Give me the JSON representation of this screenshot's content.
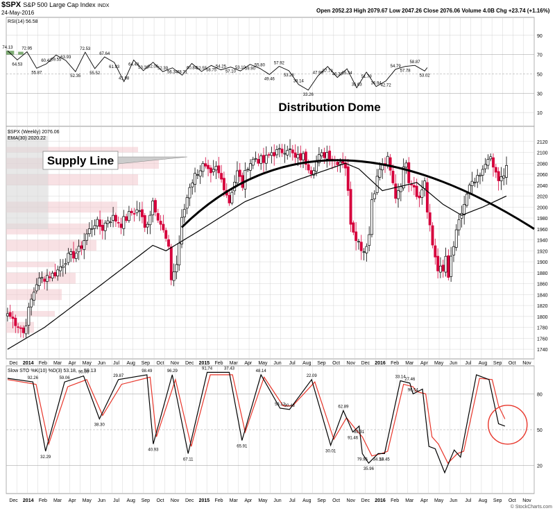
{
  "header": {
    "symbol": "$SPX",
    "name": "S&P 500 Large Cap Index",
    "exchange": "INDX",
    "date": "24-May-2016",
    "ohlc_text": "Open 2052.23  High 2079.67  Low 2047.26  Close 2076.06  Volume 4.0B  Chg +23.74 (+1.16%)",
    "watermark": "© StockCharts.com"
  },
  "panels": {
    "rsi_label": "RSI(14) 56.58",
    "price_label": "$SPX (Weekly) 2076.06",
    "ema_label": "EMA(30) 2020.22",
    "sto_label_k": "Slow STO %K(10) %D(3) 53.18,",
    "sto_label_d": "59.13"
  },
  "annotations": {
    "dome": "Distribution Dome",
    "supply": "Supply Line"
  },
  "colors": {
    "up": "#000000",
    "down": "#d6003c",
    "grid": "#cccccc",
    "sto_k": "#000000",
    "sto_d": "#e8352a",
    "circle": "#e8352a"
  },
  "chart_data": [
    {
      "type": "line",
      "title": "RSI(14) 56.58",
      "ylim": [
        0,
        100
      ],
      "ticks": [
        10,
        30,
        50,
        70,
        90
      ],
      "x_months": [
        "Dec",
        "2014",
        "Feb",
        "Mar",
        "Apr",
        "May",
        "Jun",
        "Jul",
        "Aug",
        "Sep",
        "Oct",
        "Nov",
        "Dec",
        "2015",
        "Feb",
        "Mar",
        "Apr",
        "May",
        "Jun",
        "Jul",
        "Aug",
        "Sep",
        "Oct",
        "Nov",
        "Dec",
        "2016",
        "Feb",
        "Mar",
        "Apr",
        "May",
        "Jun",
        "Jul",
        "Aug",
        "Sep",
        "Oct",
        "Nov"
      ],
      "peaks": [
        74.13,
        64.53,
        72.95,
        55.87,
        60.42,
        69.55,
        63.93,
        52.35,
        72.53,
        55.52,
        67.64,
        61.93,
        41.98,
        64.48,
        53.39,
        62.06,
        52.39,
        56.34,
        48.71,
        60.84,
        52.55,
        58.75,
        54.25,
        57.1,
        53.1,
        59.9,
        55.8,
        49.46,
        57.92,
        53.28,
        39.14,
        33.26,
        47.99,
        57.73,
        46.3,
        55.34,
        35.63,
        51.79,
        36.94,
        42.72,
        54.79,
        57.78,
        58.87,
        53.02
      ],
      "last": 56.58
    },
    {
      "type": "candlestick",
      "title": "$SPX (Weekly) 2076.06",
      "ylim": [
        1730,
        2140
      ],
      "ticks": [
        1740,
        1760,
        1780,
        1800,
        1820,
        1840,
        1860,
        1880,
        1900,
        1920,
        1940,
        1960,
        1980,
        2000,
        2020,
        2040,
        2060,
        2080,
        2100,
        2120
      ],
      "ema_label": "EMA(30) 2020.22",
      "close_start": 1805,
      "close_end": 2076.06,
      "anchors": [
        [
          0,
          1805
        ],
        [
          3,
          1790
        ],
        [
          5,
          1780
        ],
        [
          6,
          1770
        ],
        [
          9,
          1830
        ],
        [
          11,
          1862
        ],
        [
          15,
          1875
        ],
        [
          17,
          1876
        ],
        [
          19,
          1884
        ],
        [
          22,
          1905
        ],
        [
          24,
          1910
        ],
        [
          27,
          1920
        ],
        [
          30,
          1950
        ],
        [
          33,
          1972
        ],
        [
          36,
          1962
        ],
        [
          38,
          1978
        ],
        [
          40,
          1980
        ],
        [
          43,
          1970
        ],
        [
          47,
          1990
        ],
        [
          50,
          1995
        ],
        [
          52,
          1960
        ],
        [
          54,
          1990
        ],
        [
          55,
          2012
        ],
        [
          58,
          1970
        ],
        [
          60,
          1940
        ],
        [
          61,
          1920
        ],
        [
          62,
          1870
        ],
        [
          64,
          1895
        ],
        [
          66,
          1975
        ],
        [
          69,
          2040
        ],
        [
          72,
          2066
        ],
        [
          74,
          2075
        ],
        [
          77,
          2055
        ],
        [
          79,
          2070
        ],
        [
          82,
          2040
        ],
        [
          84,
          2010
        ],
        [
          85,
          2032
        ],
        [
          87,
          2063
        ],
        [
          89,
          2040
        ],
        [
          91,
          2078
        ],
        [
          94,
          2090
        ],
        [
          97,
          2082
        ],
        [
          100,
          2100
        ],
        [
          103,
          2100
        ],
        [
          106,
          2110
        ],
        [
          109,
          2088
        ],
        [
          112,
          2092
        ],
        [
          115,
          2068
        ],
        [
          118,
          2090
        ],
        [
          121,
          2100
        ],
        [
          124,
          2085
        ],
        [
          127,
          2085
        ],
        [
          128,
          2075
        ],
        [
          130,
          1975
        ],
        [
          131,
          1960
        ],
        [
          133,
          1935
        ],
        [
          135,
          1920
        ],
        [
          137,
          1950
        ],
        [
          138,
          2015
        ],
        [
          141,
          2070
        ],
        [
          144,
          2085
        ],
        [
          147,
          2020
        ],
        [
          149,
          2045
        ],
        [
          151,
          2088
        ],
        [
          152,
          2052
        ],
        [
          154,
          2040
        ],
        [
          156,
          2015
        ],
        [
          158,
          2050
        ],
        [
          159,
          1990
        ],
        [
          161,
          1930
        ],
        [
          163,
          1890
        ],
        [
          165,
          1880
        ],
        [
          166,
          1910
        ],
        [
          167,
          1864
        ],
        [
          168,
          1907
        ],
        [
          170,
          1950
        ],
        [
          172,
          1990
        ],
        [
          175,
          2035
        ],
        [
          178,
          2049
        ],
        [
          180,
          2063
        ],
        [
          182,
          2095
        ],
        [
          184,
          2072
        ],
        [
          186,
          2050
        ],
        [
          188,
          2052
        ],
        [
          189,
          2076.06
        ]
      ],
      "ema_anchors": [
        [
          0,
          1740
        ],
        [
          14,
          1780
        ],
        [
          36,
          1860
        ],
        [
          55,
          1930
        ],
        [
          60,
          1920
        ],
        [
          72,
          1955
        ],
        [
          90,
          2010
        ],
        [
          110,
          2050
        ],
        [
          128,
          2080
        ],
        [
          133,
          2070
        ],
        [
          142,
          2030
        ],
        [
          155,
          2045
        ],
        [
          165,
          2005
        ],
        [
          172,
          1985
        ],
        [
          180,
          2000
        ],
        [
          189,
          2020.22
        ]
      ]
    },
    {
      "type": "line",
      "title": "Slow STO %K(10) %D(3) 53.18, 59.13",
      "ylim": [
        0,
        100
      ],
      "ticks": [
        20,
        50,
        80
      ],
      "series": [
        {
          "name": "%K(10)",
          "last": 53.18
        },
        {
          "name": "%D(3)",
          "last": 59.13
        }
      ],
      "labels": [
        92.26,
        32.29,
        59.06,
        96.0,
        38.3,
        29.87,
        98.49,
        40.93,
        96.29,
        67.11,
        91.74,
        37.43,
        65.91,
        48.14,
        53.12,
        30.43,
        22.09,
        30.01,
        62.89,
        91.46,
        89.31,
        79.95,
        35.96,
        34.1,
        14.45,
        33.14,
        27.46,
        96.54
      ],
      "k_anchors": [
        [
          0,
          93
        ],
        [
          8,
          90
        ],
        [
          12,
          32
        ],
        [
          18,
          90
        ],
        [
          24,
          95
        ],
        [
          29,
          59
        ],
        [
          35,
          92
        ],
        [
          44,
          96
        ],
        [
          46,
          38
        ],
        [
          52,
          96
        ],
        [
          57,
          30
        ],
        [
          63,
          98
        ],
        [
          70,
          98
        ],
        [
          74,
          41
        ],
        [
          80,
          96
        ],
        [
          86,
          68
        ],
        [
          89,
          67
        ],
        [
          96,
          92
        ],
        [
          102,
          37
        ],
        [
          106,
          66
        ],
        [
          109,
          48
        ],
        [
          111,
          53
        ],
        [
          112,
          30
        ],
        [
          114,
          22
        ],
        [
          117,
          30
        ],
        [
          119,
          30
        ],
        [
          124,
          91
        ],
        [
          127,
          89
        ],
        [
          128,
          80
        ],
        [
          131,
          84
        ],
        [
          133,
          36
        ],
        [
          135,
          34
        ],
        [
          138,
          14
        ],
        [
          141,
          33
        ],
        [
          143,
          27
        ],
        [
          148,
          96
        ],
        [
          152,
          92
        ],
        [
          155,
          55
        ],
        [
          157,
          53
        ]
      ],
      "d_anchors": [
        [
          0,
          92
        ],
        [
          9,
          88
        ],
        [
          13,
          38
        ],
        [
          19,
          86
        ],
        [
          25,
          92
        ],
        [
          30,
          62
        ],
        [
          36,
          88
        ],
        [
          45,
          94
        ],
        [
          47,
          44
        ],
        [
          53,
          92
        ],
        [
          58,
          36
        ],
        [
          64,
          96
        ],
        [
          71,
          96
        ],
        [
          75,
          48
        ],
        [
          81,
          94
        ],
        [
          87,
          70
        ],
        [
          90,
          70
        ],
        [
          97,
          90
        ],
        [
          103,
          42
        ],
        [
          107,
          60
        ],
        [
          110,
          50
        ],
        [
          112,
          44
        ],
        [
          115,
          28
        ],
        [
          118,
          30
        ],
        [
          120,
          32
        ],
        [
          125,
          88
        ],
        [
          128,
          86
        ],
        [
          129,
          82
        ],
        [
          132,
          80
        ],
        [
          134,
          44
        ],
        [
          136,
          38
        ],
        [
          139,
          22
        ],
        [
          142,
          30
        ],
        [
          144,
          32
        ],
        [
          149,
          93
        ],
        [
          153,
          92
        ],
        [
          155,
          70
        ],
        [
          157,
          59
        ]
      ]
    }
  ]
}
